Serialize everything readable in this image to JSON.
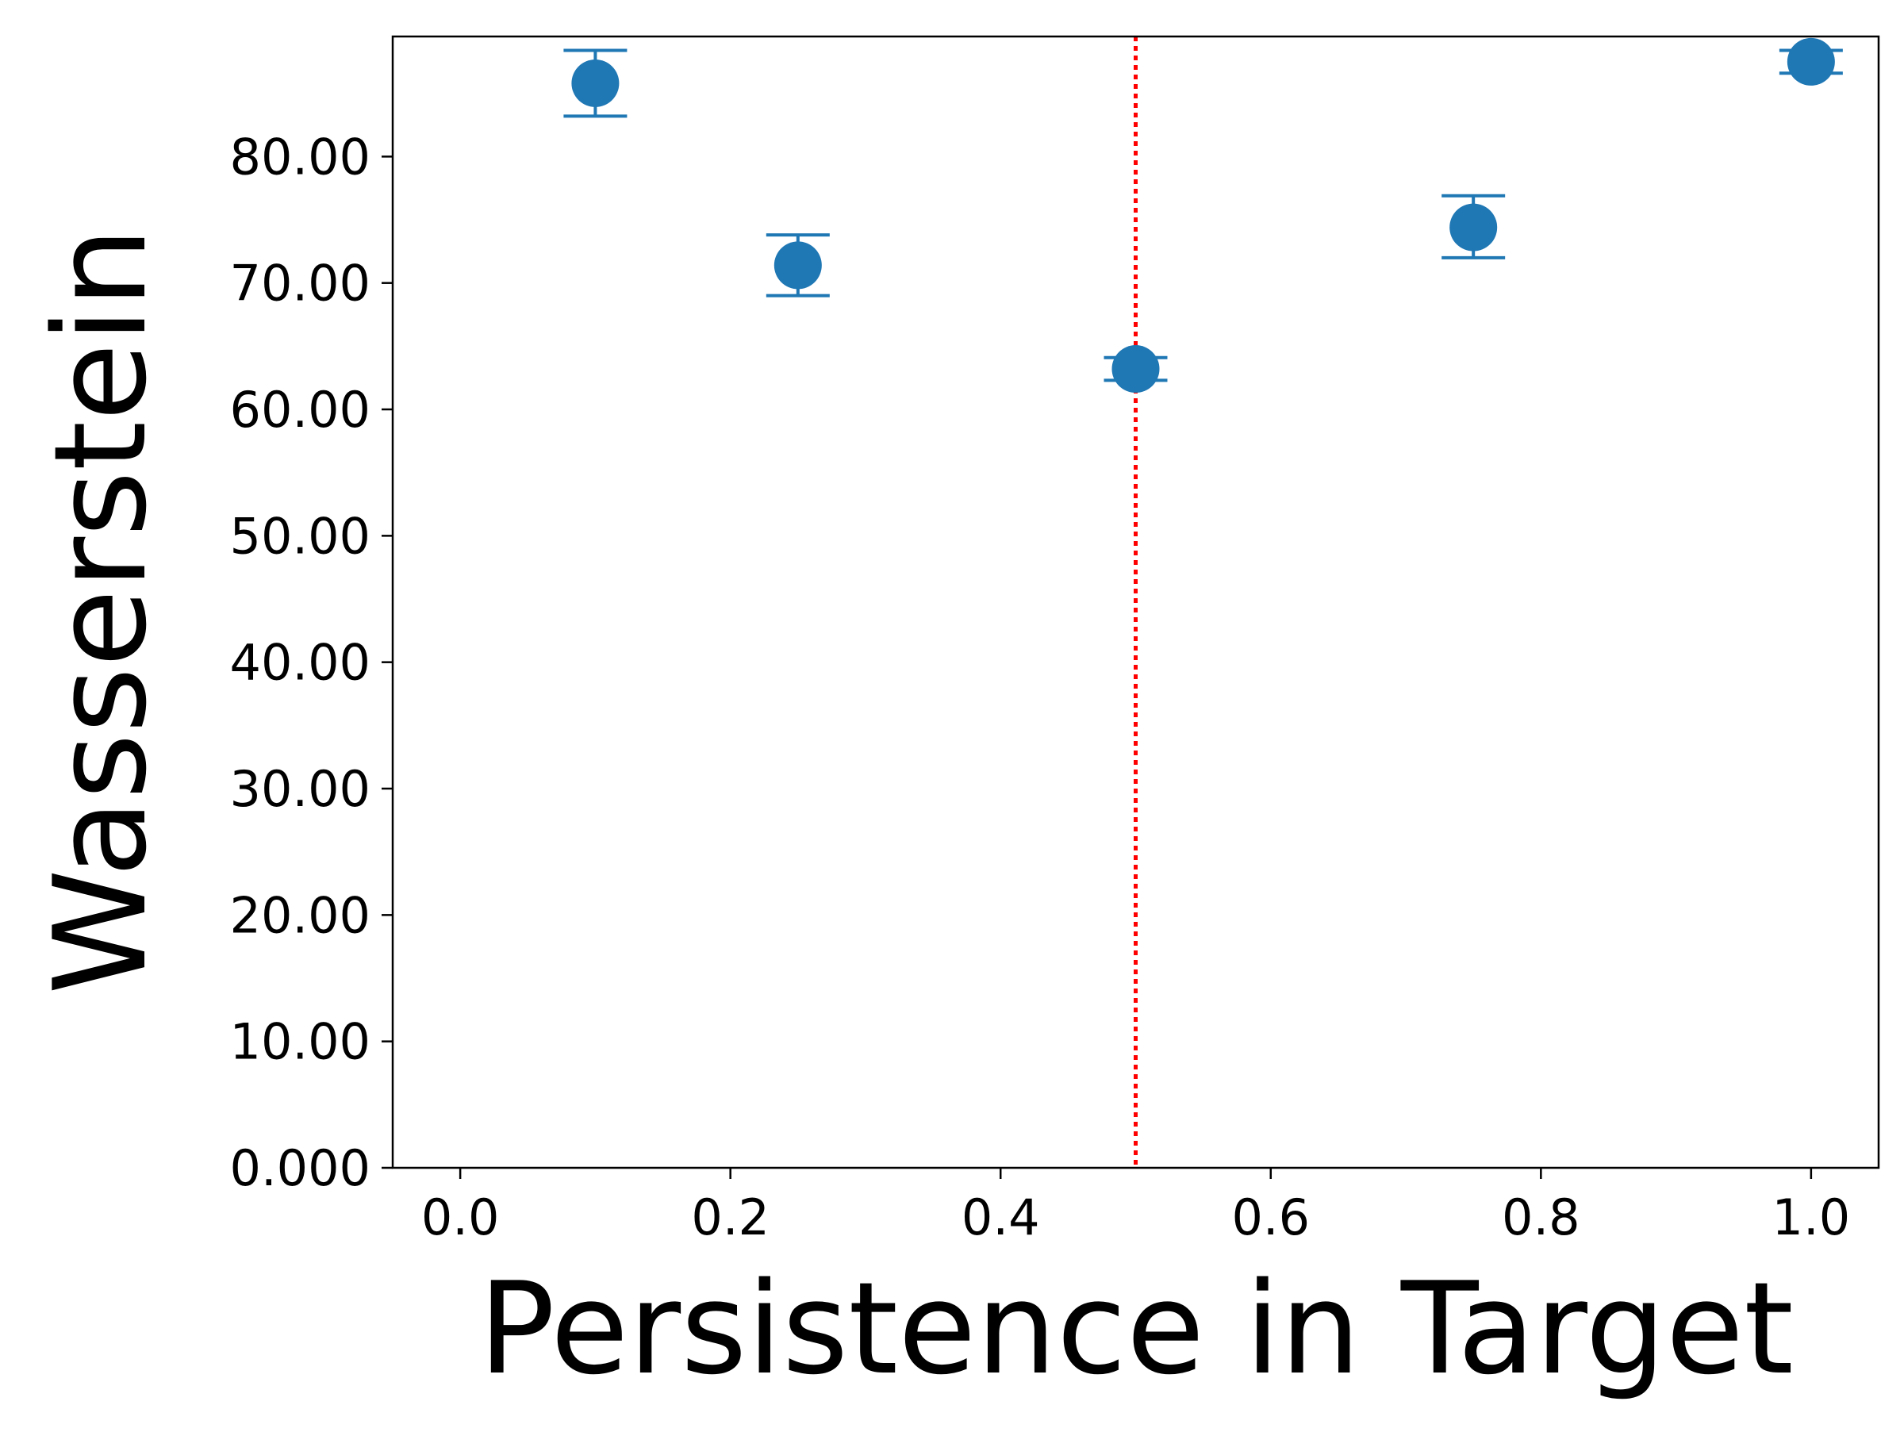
{
  "chart_data": {
    "type": "scatter",
    "title": "",
    "xlabel": "Persistence in Target",
    "ylabel": "Wasserstein",
    "xlim": [
      -0.05,
      1.05
    ],
    "ylim": [
      0,
      89.5
    ],
    "x_ticks": [
      0.0,
      0.2,
      0.4,
      0.6,
      0.8,
      1.0
    ],
    "x_tick_labels": [
      "0.0",
      "0.2",
      "0.4",
      "0.6",
      "0.8",
      "1.0"
    ],
    "y_ticks": [
      0,
      10,
      20,
      30,
      40,
      50,
      60,
      70,
      80
    ],
    "y_tick_labels": [
      "0.000",
      "10.00",
      "20.00",
      "30.00",
      "40.00",
      "50.00",
      "60.00",
      "70.00",
      "80.00"
    ],
    "grid": false,
    "legend": "none",
    "series": [
      {
        "color": "#1f77b4",
        "marker": "circle",
        "points": [
          {
            "x": 0.1,
            "y": 85.8,
            "err_low": 83.2,
            "err_high": 88.4
          },
          {
            "x": 0.25,
            "y": 71.4,
            "err_low": 69.0,
            "err_high": 73.8
          },
          {
            "x": 0.5,
            "y": 63.2,
            "err_low": 62.3,
            "err_high": 64.1
          },
          {
            "x": 0.75,
            "y": 74.4,
            "err_low": 72.0,
            "err_high": 76.9
          },
          {
            "x": 1.0,
            "y": 87.5,
            "err_low": 86.6,
            "err_high": 88.4
          }
        ]
      }
    ],
    "reference_lines": [
      {
        "orientation": "vertical",
        "x": 0.5,
        "color": "#ff0000",
        "style": "dotted"
      }
    ]
  }
}
